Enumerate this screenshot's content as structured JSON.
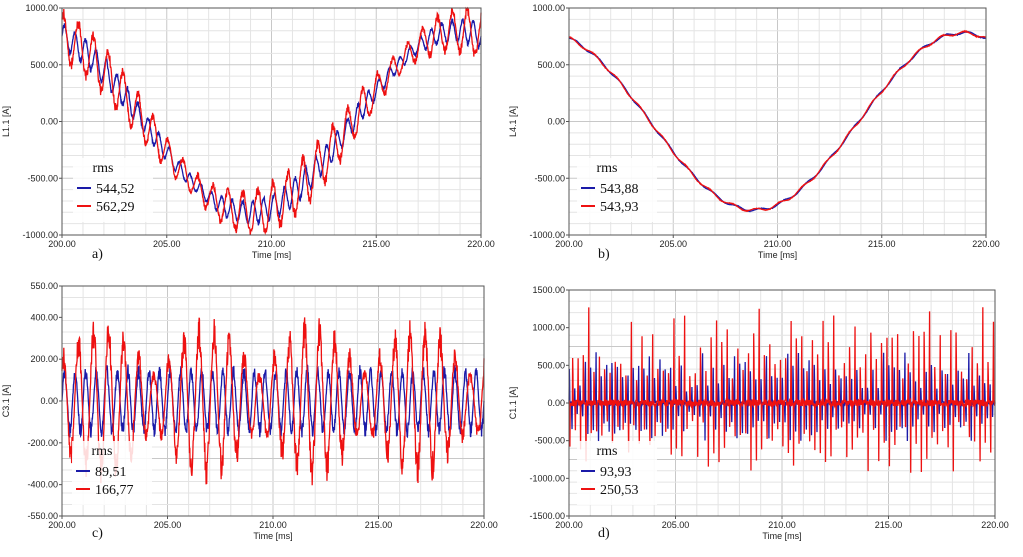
{
  "chart_data": [
    {
      "type": "line",
      "panel_label": "a)",
      "xlabel": "Time [ms]",
      "ylabel": "L1.1 [A]",
      "xlim": [
        200,
        220
      ],
      "ylim": [
        -1000,
        1000
      ],
      "x_ticks": [
        "200.00",
        "205.00",
        "210.00",
        "215.00",
        "220.00"
      ],
      "y_ticks": [
        "1000.00",
        "500.00",
        "0.00",
        "-500.00",
        "-1000.00"
      ],
      "grid": true,
      "legend": {
        "title": "rms",
        "placement": "bottom-left",
        "entries": [
          {
            "value": "544,52",
            "color": "#1a1aa8"
          },
          {
            "value": "562,29",
            "color": "#ee1111"
          }
        ]
      },
      "series": [
        {
          "color": "#1a1aa8",
          "base": {
            "amp": 800,
            "phase_deg": 20
          },
          "ripple": {
            "amp": 110,
            "freq_khz": 2.0
          }
        },
        {
          "color": "#ee1111",
          "base": {
            "amp": 800,
            "phase_deg": 20
          },
          "ripple": {
            "amp": 210,
            "freq_khz": 1.4
          }
        }
      ]
    },
    {
      "type": "line",
      "panel_label": "b)",
      "xlabel": "Time [ms]",
      "ylabel": "L4.1 [A]",
      "xlim": [
        200,
        220
      ],
      "ylim": [
        -1000,
        1000
      ],
      "x_ticks": [
        "200.00",
        "205.00",
        "210.00",
        "215.00",
        "220.00"
      ],
      "y_ticks": [
        "1000.00",
        "500.00",
        "0.00",
        "-500.00",
        "-1000.00"
      ],
      "grid": true,
      "legend": {
        "title": "rms",
        "placement": "bottom-left",
        "entries": [
          {
            "value": "543,88",
            "color": "#1a1aa8"
          },
          {
            "value": "543,93",
            "color": "#ee1111"
          }
        ]
      },
      "series": [
        {
          "color": "#1a1aa8",
          "base": {
            "amp": 780,
            "phase_deg": 20
          },
          "ripple": {
            "amp": 12,
            "freq_khz": 0.9
          }
        },
        {
          "color": "#ee1111",
          "base": {
            "amp": 780,
            "phase_deg": 20
          },
          "ripple": {
            "amp": 14,
            "freq_khz": 0.9
          }
        }
      ]
    },
    {
      "type": "line",
      "panel_label": "c)",
      "xlabel": "Time [ms]",
      "ylabel": "C3.1 [A]",
      "xlim": [
        200,
        220
      ],
      "ylim": [
        -550,
        550
      ],
      "x_ticks": [
        "200.00",
        "205.00",
        "210.00",
        "215.00",
        "220.00"
      ],
      "y_ticks": [
        "550.00",
        "400.00",
        "200.00",
        "0.00",
        "-200.00",
        "-400.00",
        "-550.00"
      ],
      "y_tick_values": [
        550,
        400,
        200,
        0,
        -200,
        -400,
        -550
      ],
      "grid": true,
      "legend": {
        "title": "rms",
        "placement": "bottom-left",
        "entries": [
          {
            "value": "89,51",
            "color": "#1a1aa8"
          },
          {
            "value": "166,77",
            "color": "#ee1111"
          }
        ]
      },
      "series": [
        {
          "color": "#1a1aa8",
          "ripple": {
            "amp": 140,
            "freq_khz": 2.0
          }
        },
        {
          "color": "#ee1111",
          "ripple": {
            "amp": 330,
            "freq_khz": 1.4
          },
          "envelope": "beating"
        }
      ]
    },
    {
      "type": "line",
      "panel_label": "d)",
      "xlabel": "Time [ms]",
      "ylabel": "C1.1 [A]",
      "xlim": [
        200,
        220
      ],
      "ylim": [
        -1500,
        1500
      ],
      "x_ticks": [
        "200.00",
        "205.00",
        "210.00",
        "215.00",
        "220.00"
      ],
      "y_ticks": [
        "1500.00",
        "1000.00",
        "500.00",
        "0.00",
        "-500.00",
        "-1000.00",
        "-1500.00"
      ],
      "grid": true,
      "legend": {
        "title": "rms",
        "placement": "bottom-left",
        "entries": [
          {
            "value": "93,93",
            "color": "#1a1aa8"
          },
          {
            "value": "250,53",
            "color": "#ee1111"
          }
        ]
      },
      "series": [
        {
          "color": "#1a1aa8",
          "spikes": {
            "amp": 600,
            "freq_khz": 4.0
          }
        },
        {
          "color": "#ee1111",
          "spikes": {
            "amp": 1100,
            "freq_khz": 4.0
          }
        }
      ]
    }
  ]
}
